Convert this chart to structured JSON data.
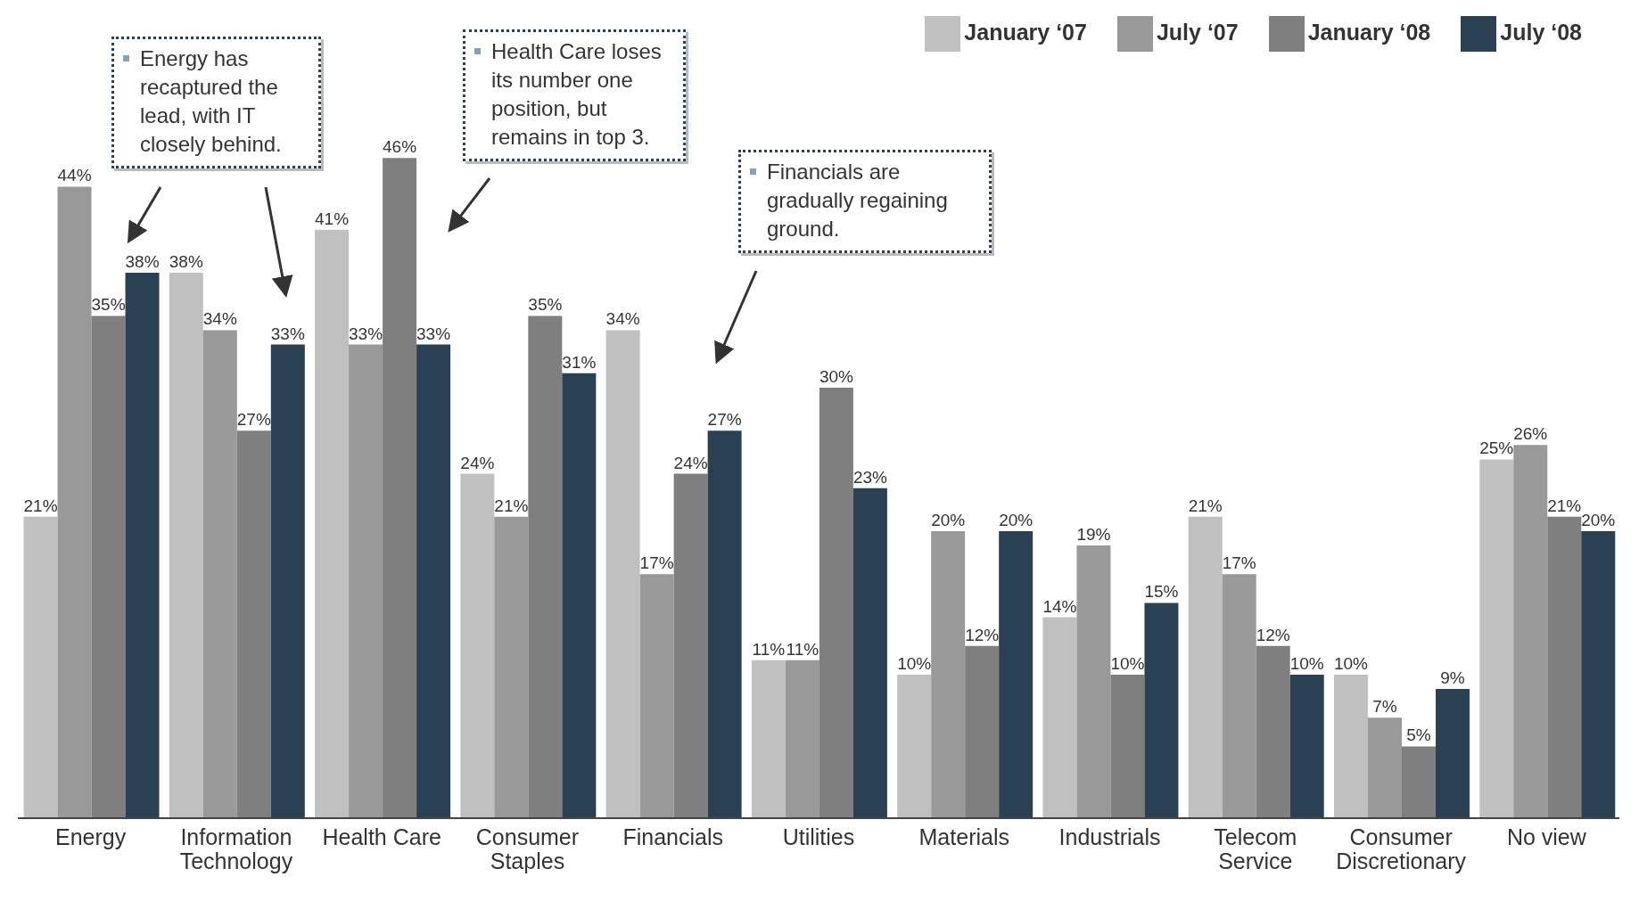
{
  "chart_data": {
    "type": "bar",
    "categories": [
      "Energy",
      "Information Technology",
      "Health Care",
      "Consumer Staples",
      "Financials",
      "Utilities",
      "Materials",
      "Industrials",
      "Telecom Service",
      "Consumer Discretionary",
      "No view"
    ],
    "series": [
      {
        "name": "January ‘07",
        "color": "#c0c0c0",
        "values": [
          21,
          38,
          41,
          24,
          34,
          11,
          10,
          14,
          21,
          10,
          25
        ],
        "value_labels": [
          "21%",
          "38%",
          "41%",
          "24%",
          "34%",
          "11%",
          "10%",
          "14%",
          "21%",
          "10%",
          "25%"
        ]
      },
      {
        "name": "July ‘07",
        "color": "#999999",
        "values": [
          44,
          34,
          33,
          21,
          17,
          11,
          20,
          19,
          17,
          7,
          26
        ],
        "value_labels": [
          "44%",
          "34%",
          "33%",
          "21%",
          "17%",
          "11%",
          "20%",
          "19%",
          "17%",
          "7%",
          "26%"
        ]
      },
      {
        "name": "January ‘08",
        "color": "#7f7f7f",
        "values": [
          35,
          27,
          46,
          35,
          24,
          30,
          12,
          10,
          12,
          5,
          21
        ],
        "value_labels": [
          "35%",
          "27%",
          "46%",
          "35%",
          "24%",
          "30%",
          "12%",
          "10%",
          "12%",
          "5%",
          "21%"
        ]
      },
      {
        "name": "July ‘08",
        "color": "#2a4053",
        "values": [
          38,
          33,
          33,
          31,
          27,
          23,
          20,
          15,
          10,
          9,
          20
        ],
        "value_labels": [
          "38%",
          "33%",
          "33%",
          "31%",
          "27%",
          "23%",
          "20%",
          "15%",
          "10%",
          "9%",
          "20%"
        ]
      }
    ],
    "legend": "top right",
    "annotations": [
      "Energy has recaptured the lead, with IT closely behind.",
      "Health Care loses its number one position, but remains in top 3.",
      "Financials are gradually regaining ground."
    ]
  }
}
